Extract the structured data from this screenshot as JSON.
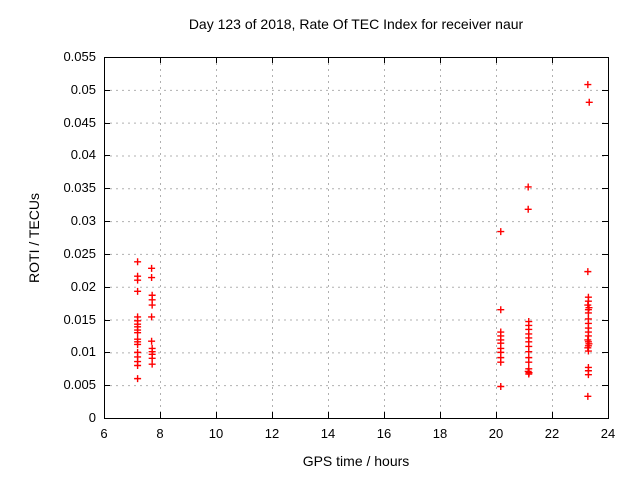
{
  "chart_data": {
    "type": "scatter",
    "title": "Day 123 of 2018, Rate Of TEC Index for receiver naur",
    "xlabel": "GPS time / hours",
    "ylabel": "ROTI / TECUs",
    "xlim": [
      6,
      24
    ],
    "ylim": [
      0,
      0.055
    ],
    "xticks": [
      6,
      8,
      10,
      12,
      14,
      16,
      18,
      20,
      22,
      24
    ],
    "xtick_labels": [
      "6",
      "8",
      "10",
      "12",
      "14",
      "16",
      "18",
      "20",
      "22",
      "24"
    ],
    "yticks": [
      0,
      0.005,
      0.01,
      0.015,
      0.02,
      0.025,
      0.03,
      0.035,
      0.04,
      0.045,
      0.05,
      0.055
    ],
    "ytick_labels": [
      "0",
      "0.005",
      "0.01",
      "0.015",
      "0.02",
      "0.025",
      "0.03",
      "0.035",
      "0.04",
      "0.045",
      "0.05",
      "0.055"
    ],
    "grid": true,
    "legend_position": "none",
    "marker": "plus",
    "marker_color": "#ff0000",
    "grid_color": "#b0b0b0",
    "series": [
      {
        "name": "ROTI",
        "points": [
          [
            7.2,
            0.0238
          ],
          [
            7.2,
            0.0216
          ],
          [
            7.2,
            0.021
          ],
          [
            7.2,
            0.0193
          ],
          [
            7.2,
            0.0154
          ],
          [
            7.2,
            0.0148
          ],
          [
            7.2,
            0.0143
          ],
          [
            7.2,
            0.0139
          ],
          [
            7.2,
            0.0134
          ],
          [
            7.2,
            0.013
          ],
          [
            7.2,
            0.012
          ],
          [
            7.2,
            0.0116
          ],
          [
            7.2,
            0.0112
          ],
          [
            7.2,
            0.01
          ],
          [
            7.2,
            0.0093
          ],
          [
            7.2,
            0.0086
          ],
          [
            7.2,
            0.008
          ],
          [
            7.2,
            0.006
          ],
          [
            7.7,
            0.0228
          ],
          [
            7.7,
            0.0214
          ],
          [
            7.72,
            0.0187
          ],
          [
            7.72,
            0.018
          ],
          [
            7.72,
            0.0172
          ],
          [
            7.7,
            0.0154
          ],
          [
            7.7,
            0.0117
          ],
          [
            7.72,
            0.0106
          ],
          [
            7.72,
            0.0101
          ],
          [
            7.72,
            0.0097
          ],
          [
            7.72,
            0.0091
          ],
          [
            7.72,
            0.0082
          ],
          [
            20.17,
            0.0284
          ],
          [
            20.17,
            0.0165
          ],
          [
            20.17,
            0.0131
          ],
          [
            20.17,
            0.0125
          ],
          [
            20.17,
            0.0119
          ],
          [
            20.17,
            0.0114
          ],
          [
            20.17,
            0.0106
          ],
          [
            20.17,
            0.01
          ],
          [
            20.17,
            0.0092
          ],
          [
            20.17,
            0.0085
          ],
          [
            20.17,
            0.0048
          ],
          [
            21.15,
            0.0352
          ],
          [
            21.15,
            0.0318
          ],
          [
            21.17,
            0.0147
          ],
          [
            21.17,
            0.0141
          ],
          [
            21.17,
            0.0135
          ],
          [
            21.17,
            0.0128
          ],
          [
            21.17,
            0.0122
          ],
          [
            21.17,
            0.0116
          ],
          [
            21.17,
            0.0109
          ],
          [
            21.17,
            0.0101
          ],
          [
            21.17,
            0.0092
          ],
          [
            21.17,
            0.0085
          ],
          [
            21.17,
            0.0075
          ],
          [
            21.15,
            0.0071
          ],
          [
            21.18,
            0.0069
          ],
          [
            21.17,
            0.0067
          ],
          [
            23.28,
            0.0508
          ],
          [
            23.33,
            0.0481
          ],
          [
            23.28,
            0.0223
          ],
          [
            23.3,
            0.0184
          ],
          [
            23.3,
            0.0178
          ],
          [
            23.28,
            0.0172
          ],
          [
            23.32,
            0.0168
          ],
          [
            23.3,
            0.0165
          ],
          [
            23.3,
            0.016
          ],
          [
            23.3,
            0.0151
          ],
          [
            23.3,
            0.0144
          ],
          [
            23.3,
            0.0137
          ],
          [
            23.3,
            0.0131
          ],
          [
            23.3,
            0.0125
          ],
          [
            23.28,
            0.0119
          ],
          [
            23.3,
            0.0116
          ],
          [
            23.32,
            0.0113
          ],
          [
            23.3,
            0.011
          ],
          [
            23.28,
            0.0107
          ],
          [
            23.3,
            0.0102
          ],
          [
            23.3,
            0.0077
          ],
          [
            23.3,
            0.0072
          ],
          [
            23.3,
            0.0066
          ],
          [
            23.28,
            0.0033
          ]
        ]
      }
    ]
  }
}
